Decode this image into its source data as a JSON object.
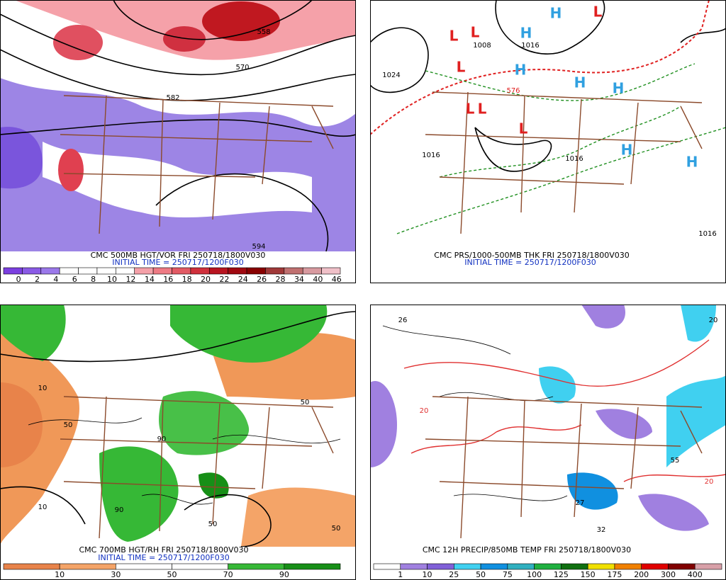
{
  "panels": [
    {
      "caption": "CMC 500MB HGT/VOR FRI 250718/1800V030",
      "initial": "INITIAL TIME = 250717/1200F030",
      "colorbar": {
        "labels": [
          0,
          2,
          4,
          6,
          8,
          10,
          12,
          14,
          16,
          18,
          20,
          22,
          24,
          26,
          28,
          34,
          40,
          46
        ],
        "colors": [
          "#7b3fe0",
          "#8a5ae6",
          "#9b78ea",
          "#ffffff",
          "#ffffff",
          "#ffffff",
          "#ffffff",
          "#f4a0a8",
          "#ee7a84",
          "#e25a64",
          "#d0303c",
          "#b81420",
          "#a00810",
          "#880000",
          "#a03838",
          "#c07070",
          "#d89aa0",
          "#f0c0c8"
        ]
      },
      "map_labels": [
        "558",
        "570",
        "582",
        "594"
      ]
    },
    {
      "caption": "CMC PRS/1000-500MB THK FRI 250718/1800V030",
      "initial": "INITIAL TIME = 250717/1200F030",
      "map_labels": [
        "H",
        "H",
        "H",
        "H",
        "H",
        "H",
        "H",
        "L",
        "L",
        "L",
        "L",
        "L",
        "L",
        "L",
        "1024",
        "1016",
        "1008",
        "1016",
        "1016",
        "576",
        "1016"
      ]
    },
    {
      "caption": "CMC 700MB HGT/RH FRI 250718/1800V030",
      "initial": "INITIAL TIME = 250717/1200F030",
      "colorbar": {
        "labels": [
          10,
          30,
          50,
          70,
          90
        ],
        "colors": [
          "#e8834a",
          "#f4a468",
          "#ffffff",
          "#ffffff",
          "#36b836",
          "#178f17"
        ]
      },
      "map_labels": [
        "10",
        "50",
        "90",
        "50",
        "10",
        "50",
        "90",
        "50"
      ]
    },
    {
      "caption": "CMC 12H PRECIP/850MB TEMP FRI 250718/1800V030",
      "colorbar": {
        "labels": [
          1,
          10,
          25,
          50,
          75,
          100,
          125,
          150,
          175,
          200,
          300,
          400
        ],
        "colors": [
          "#ffffff",
          "#a080e0",
          "#8060d8",
          "#40d0f0",
          "#1090e0",
          "#30b0c0",
          "#20b040",
          "#107010",
          "#f0e000",
          "#f08000",
          "#e00000",
          "#800000",
          "#d8a0a8"
        ]
      },
      "map_labels": [
        "26",
        "20",
        "20",
        "55",
        "32",
        "27",
        "20"
      ]
    }
  ]
}
